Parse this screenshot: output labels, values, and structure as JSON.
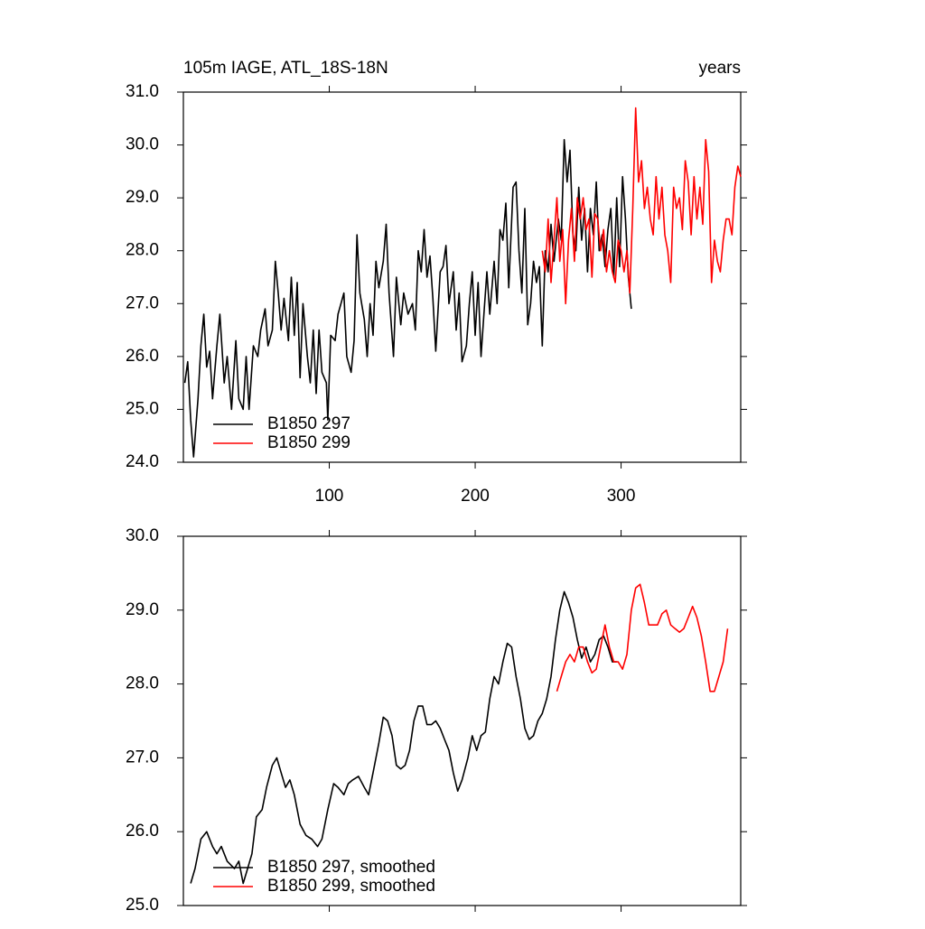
{
  "chart_data": [
    {
      "type": "line",
      "title": "105m IAGE, ATL_18S-18N",
      "right_title": "years",
      "xlim": [
        0,
        382
      ],
      "xticks": [
        100,
        200,
        300
      ],
      "xtick_labels": true,
      "ylim": [
        24,
        31
      ],
      "yticks": [
        {
          "value": 24,
          "label": "24.0"
        },
        {
          "value": 25,
          "label": "25.0"
        },
        {
          "value": 26,
          "label": "26.0"
        },
        {
          "value": 27,
          "label": "27.0"
        },
        {
          "value": 28,
          "label": "28.0"
        },
        {
          "value": 29,
          "label": "29.0"
        },
        {
          "value": 30,
          "label": "30.0"
        },
        {
          "value": 31,
          "label": "31.0"
        }
      ],
      "legend": "lower left",
      "series": [
        {
          "name": "B1850 297",
          "color": "#000000",
          "x": [
            1,
            3,
            5,
            7,
            10,
            12,
            14,
            16,
            18,
            20,
            23,
            25,
            28,
            30,
            33,
            36,
            38,
            41,
            43,
            45,
            48,
            51,
            53,
            56,
            58,
            61,
            63,
            65,
            67,
            69,
            72,
            74,
            76,
            78,
            80,
            82,
            85,
            87,
            89,
            91,
            93,
            95,
            98,
            99,
            101,
            104,
            106,
            110,
            112,
            115,
            117,
            119,
            121,
            124,
            126,
            128,
            130,
            132,
            134,
            137,
            139,
            141,
            144,
            146,
            149,
            151,
            154,
            157,
            159,
            161,
            163,
            165,
            167,
            169,
            171,
            173,
            176,
            178,
            180,
            182,
            185,
            187,
            189,
            191,
            194,
            196,
            198,
            200,
            202,
            204,
            206,
            208,
            210,
            213,
            215,
            217,
            219,
            221,
            223,
            226,
            228,
            230,
            232,
            234,
            236,
            238,
            240,
            242,
            244,
            246,
            248,
            250,
            252,
            254,
            257,
            259,
            261,
            263,
            265,
            267,
            269,
            271,
            273,
            275,
            277,
            279,
            281,
            283,
            285,
            287,
            289,
            291,
            293,
            295,
            297,
            299,
            301,
            303,
            305,
            307
          ],
          "values": [
            25.5,
            25.9,
            24.8,
            24.1,
            25.2,
            26.2,
            26.8,
            25.8,
            26.1,
            25.2,
            26.2,
            26.8,
            25.5,
            26.0,
            25.0,
            26.3,
            25.2,
            25.0,
            26.0,
            25.0,
            26.2,
            26.0,
            26.5,
            26.9,
            26.2,
            26.5,
            27.8,
            27.2,
            26.5,
            27.1,
            26.3,
            27.5,
            26.4,
            27.4,
            25.6,
            27.0,
            26.0,
            25.5,
            26.5,
            25.3,
            26.5,
            25.7,
            25.5,
            24.8,
            26.4,
            26.3,
            26.8,
            27.2,
            26.0,
            25.7,
            26.3,
            28.3,
            27.2,
            26.7,
            26.0,
            27.0,
            26.4,
            27.8,
            27.3,
            27.8,
            28.5,
            27.2,
            26.0,
            27.5,
            26.6,
            27.2,
            26.8,
            27.0,
            26.5,
            28.0,
            27.6,
            28.4,
            27.5,
            27.9,
            27.1,
            26.1,
            27.6,
            27.7,
            28.1,
            27.0,
            27.6,
            26.5,
            27.2,
            25.9,
            26.2,
            27.0,
            27.6,
            26.4,
            27.4,
            26.0,
            26.8,
            27.6,
            26.8,
            27.8,
            27.0,
            28.4,
            28.2,
            28.9,
            27.3,
            29.2,
            29.3,
            28.0,
            27.2,
            28.8,
            26.6,
            27.0,
            27.8,
            27.4,
            27.7,
            26.2,
            28.0,
            27.6,
            28.5,
            27.8,
            28.6,
            28.2,
            30.1,
            29.3,
            29.9,
            28.3,
            28.0,
            29.2,
            28.2,
            28.8,
            27.6,
            28.8,
            28.3,
            29.3,
            28.0,
            28.3,
            27.7,
            28.4,
            28.8,
            27.5,
            29.0,
            27.7,
            29.4,
            28.6,
            27.5,
            26.9
          ]
        },
        {
          "name": "B1850 299",
          "color": "#ff0000",
          "x": [
            246,
            248,
            250,
            252,
            254,
            256,
            258,
            260,
            262,
            264,
            266,
            268,
            270,
            272,
            274,
            276,
            278,
            280,
            282,
            284,
            286,
            288,
            290,
            292,
            294,
            296,
            298,
            300,
            302,
            304,
            306,
            308,
            310,
            312,
            314,
            316,
            318,
            320,
            322,
            324,
            326,
            328,
            330,
            332,
            334,
            336,
            338,
            340,
            342,
            344,
            346,
            348,
            350,
            352,
            354,
            356,
            358,
            360,
            362,
            364,
            366,
            368,
            370,
            372,
            374,
            376,
            378,
            380,
            382
          ],
          "values": [
            28.0,
            27.6,
            28.6,
            27.4,
            28.2,
            29.0,
            27.8,
            28.4,
            27.0,
            28.2,
            28.8,
            27.8,
            29.0,
            28.6,
            29.0,
            28.4,
            28.6,
            27.5,
            28.7,
            28.6,
            28.0,
            28.4,
            27.6,
            28.0,
            27.6,
            27.4,
            28.2,
            28.0,
            27.6,
            28.0,
            27.2,
            28.8,
            30.7,
            29.3,
            29.7,
            28.8,
            29.2,
            28.6,
            28.3,
            29.4,
            28.6,
            29.2,
            28.3,
            28.0,
            27.4,
            29.2,
            28.8,
            29.0,
            28.4,
            29.7,
            29.3,
            28.3,
            29.4,
            28.6,
            29.2,
            28.5,
            30.1,
            29.5,
            27.4,
            28.2,
            27.8,
            27.6,
            28.2,
            28.6,
            28.6,
            28.3,
            29.2,
            29.6,
            29.4
          ]
        }
      ]
    },
    {
      "type": "line",
      "xlim": [
        0,
        382
      ],
      "xticks": [
        100,
        200,
        300
      ],
      "xtick_labels": false,
      "ylim": [
        25,
        30
      ],
      "yticks": [
        {
          "value": 25,
          "label": "25.0"
        },
        {
          "value": 26,
          "label": "26.0"
        },
        {
          "value": 27,
          "label": "27.0"
        },
        {
          "value": 28,
          "label": "28.0"
        },
        {
          "value": 29,
          "label": "29.0"
        },
        {
          "value": 30,
          "label": "30.0"
        }
      ],
      "legend": "lower left",
      "series": [
        {
          "name": "B1850 297, smoothed",
          "color": "#000000",
          "x": [
            5,
            8,
            12,
            16,
            20,
            23,
            26,
            30,
            35,
            38,
            41,
            44,
            47,
            50,
            54,
            57,
            61,
            64,
            67,
            70,
            73,
            76,
            80,
            84,
            88,
            92,
            95,
            99,
            103,
            106,
            110,
            113,
            116,
            120,
            124,
            127,
            130,
            134,
            137,
            140,
            143,
            146,
            149,
            152,
            155,
            158,
            161,
            164,
            167,
            170,
            173,
            176,
            179,
            182,
            185,
            188,
            191,
            195,
            198,
            201,
            204,
            207,
            210,
            213,
            216,
            219,
            222,
            225,
            228,
            231,
            234,
            237,
            240,
            243,
            246,
            249,
            252,
            255,
            258,
            261,
            264,
            267,
            270,
            273,
            276,
            279,
            282,
            285,
            288,
            291,
            294,
            297
          ],
          "values": [
            25.3,
            25.5,
            25.9,
            26.0,
            25.8,
            25.7,
            25.8,
            25.6,
            25.5,
            25.6,
            25.3,
            25.5,
            25.7,
            26.2,
            26.3,
            26.6,
            26.9,
            27.0,
            26.8,
            26.6,
            26.7,
            26.5,
            26.1,
            25.95,
            25.9,
            25.8,
            25.9,
            26.3,
            26.65,
            26.6,
            26.5,
            26.65,
            26.7,
            26.75,
            26.6,
            26.5,
            26.8,
            27.2,
            27.55,
            27.5,
            27.3,
            26.9,
            26.85,
            26.9,
            27.1,
            27.5,
            27.7,
            27.7,
            27.45,
            27.45,
            27.5,
            27.4,
            27.25,
            27.1,
            26.8,
            26.55,
            26.7,
            27.0,
            27.3,
            27.1,
            27.3,
            27.35,
            27.8,
            28.1,
            28.0,
            28.3,
            28.55,
            28.5,
            28.1,
            27.8,
            27.4,
            27.25,
            27.3,
            27.5,
            27.6,
            27.8,
            28.1,
            28.6,
            29.0,
            29.25,
            29.1,
            28.9,
            28.6,
            28.35,
            28.5,
            28.3,
            28.4,
            28.6,
            28.65,
            28.5,
            28.3,
            28.3
          ]
        },
        {
          "name": "B1850 299, smoothed",
          "color": "#ff0000",
          "x": [
            256,
            259,
            262,
            265,
            268,
            271,
            274,
            277,
            280,
            283,
            286,
            289,
            292,
            295,
            298,
            301,
            304,
            307,
            310,
            313,
            316,
            319,
            322,
            325,
            328,
            331,
            334,
            337,
            340,
            343,
            346,
            349,
            352,
            355,
            358,
            361,
            364,
            367,
            370,
            373
          ],
          "values": [
            27.9,
            28.1,
            28.3,
            28.4,
            28.3,
            28.5,
            28.5,
            28.3,
            28.15,
            28.2,
            28.5,
            28.8,
            28.5,
            28.3,
            28.3,
            28.2,
            28.4,
            29.0,
            29.3,
            29.35,
            29.1,
            28.8,
            28.8,
            28.8,
            28.95,
            29.0,
            28.8,
            28.75,
            28.7,
            28.75,
            28.9,
            29.05,
            28.9,
            28.65,
            28.3,
            27.9,
            27.9,
            28.1,
            28.3,
            28.75
          ]
        }
      ]
    }
  ]
}
